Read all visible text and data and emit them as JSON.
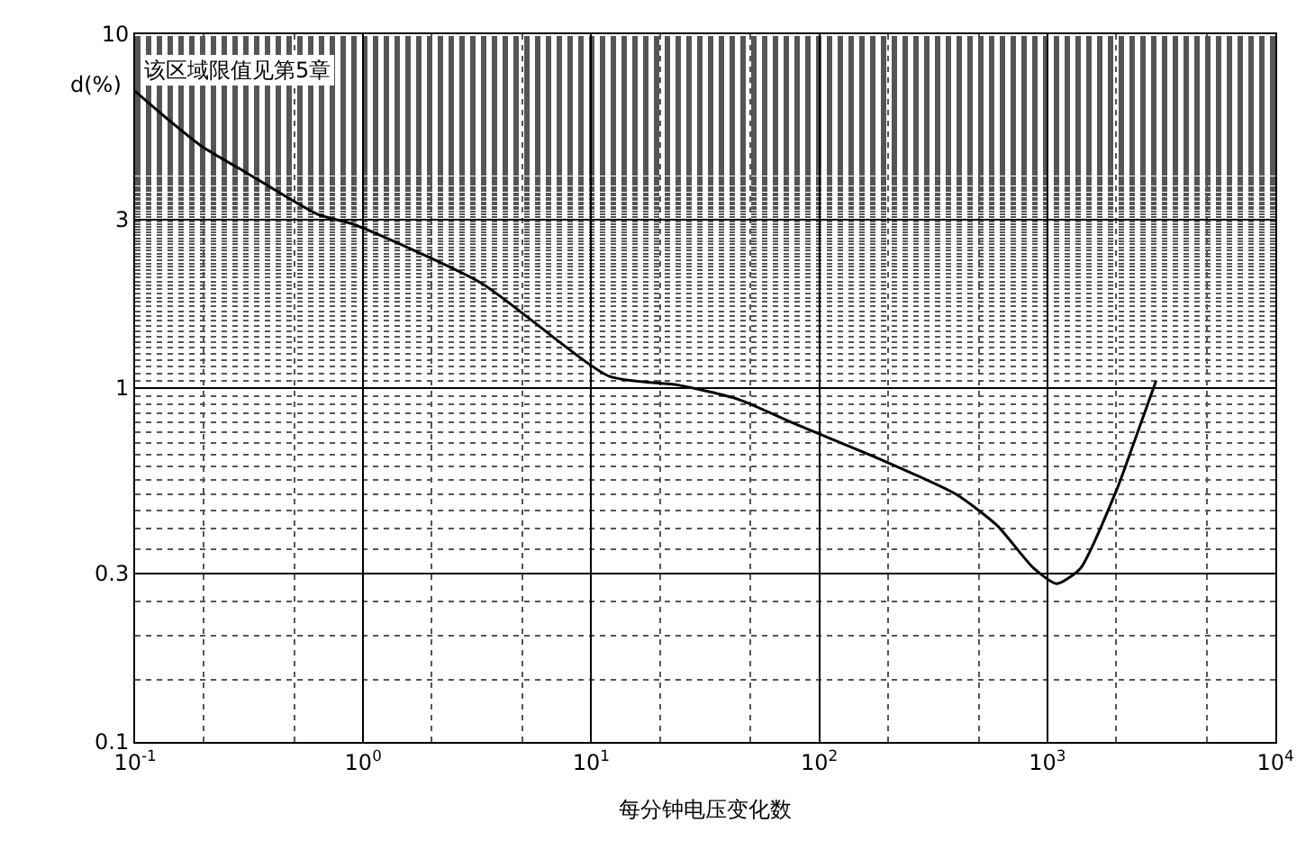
{
  "chart_data": {
    "type": "line",
    "xlabel": "每分钟电压变化数",
    "ylabel": "d(%)",
    "annotations": [
      "该区域限值见第5章"
    ],
    "log": "xy",
    "grid": true,
    "legend": false,
    "marker": "none",
    "line_style": "solid",
    "xlim": [
      0.1,
      10000
    ],
    "ylim": [
      0.1,
      10
    ],
    "xticks": [
      {
        "value": 0.1,
        "label": "10$^{-1}$"
      },
      {
        "value": 1,
        "label": "10$^{0}$"
      },
      {
        "value": 10,
        "label": "10$^{1}$"
      },
      {
        "value": 100,
        "label": "10$^{2}$"
      },
      {
        "value": 1000,
        "label": "10$^{3}$"
      },
      {
        "value": 10000,
        "label": "10$^{4}$"
      }
    ],
    "yticks": [
      0.1,
      0.3,
      1,
      3,
      10
    ],
    "series": [
      {
        "color": "#000000",
        "x": [
          0.1,
          0.137,
          0.198,
          0.3,
          0.63,
          0.91,
          3.3,
          12,
          24,
          44,
          79,
          195,
          400,
          600,
          870,
          1100,
          1400,
          2000,
          2240,
          3000
        ],
        "values": [
          6.9,
          5.8,
          4.8,
          4.1,
          3.1,
          2.9,
          1.98,
          1.08,
          1.02,
          0.93,
          0.79,
          0.62,
          0.5,
          0.41,
          0.31,
          0.28,
          0.31,
          0.51,
          0.62,
          1.05
        ]
      }
    ]
  }
}
